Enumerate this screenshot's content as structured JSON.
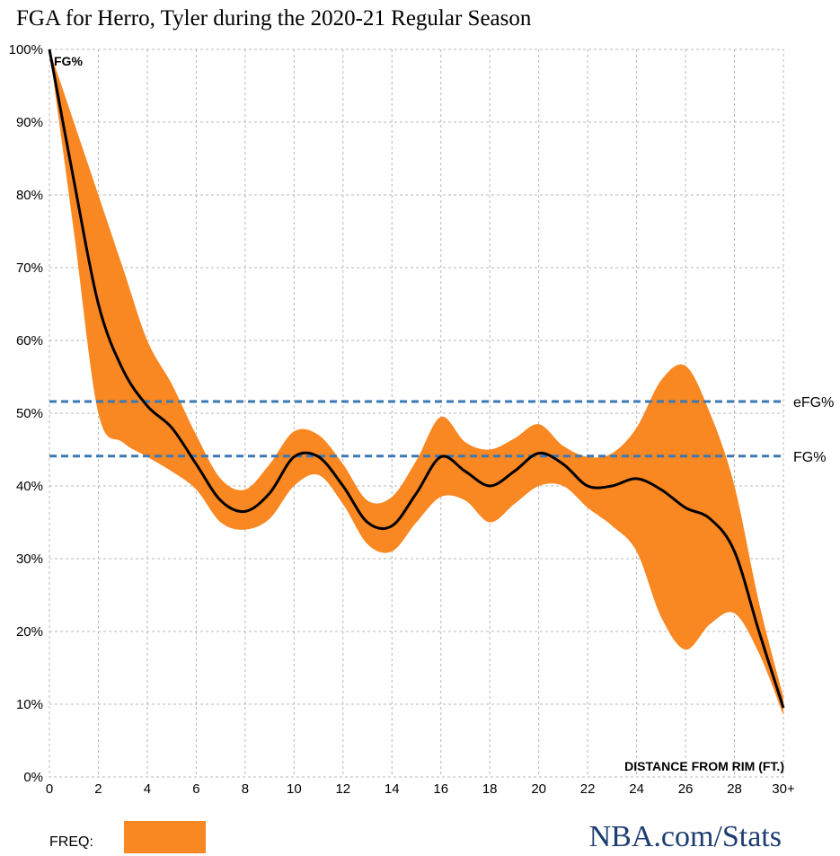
{
  "colors": {
    "band": "#f98722",
    "line": "#000000",
    "reference": "#3b78b4",
    "grid": "#b8b8b8",
    "brand": "#1d3d73"
  },
  "legend": {
    "freq_label": "FREQ:"
  },
  "brand": "NBA.com/Stats",
  "chart_data": {
    "type": "area",
    "title": "FGA for Herro, Tyler during the 2020-21 Regular Season",
    "xlabel": "DISTANCE FROM RIM (FT.)",
    "ylabel": "FG%",
    "xlim": [
      0,
      30
    ],
    "ylim": [
      0,
      100
    ],
    "grid": true,
    "x_ticks": [
      {
        "value": 0,
        "label": "0"
      },
      {
        "value": 2,
        "label": "2"
      },
      {
        "value": 4,
        "label": "4"
      },
      {
        "value": 6,
        "label": "6"
      },
      {
        "value": 8,
        "label": "8"
      },
      {
        "value": 10,
        "label": "10"
      },
      {
        "value": 12,
        "label": "12"
      },
      {
        "value": 14,
        "label": "14"
      },
      {
        "value": 16,
        "label": "16"
      },
      {
        "value": 18,
        "label": "18"
      },
      {
        "value": 20,
        "label": "20"
      },
      {
        "value": 22,
        "label": "22"
      },
      {
        "value": 24,
        "label": "24"
      },
      {
        "value": 26,
        "label": "26"
      },
      {
        "value": 28,
        "label": "28"
      },
      {
        "value": 30,
        "label": "30+"
      }
    ],
    "y_ticks": [
      {
        "value": 0,
        "label": "0%"
      },
      {
        "value": 10,
        "label": "10%"
      },
      {
        "value": 20,
        "label": "20%"
      },
      {
        "value": 30,
        "label": "30%"
      },
      {
        "value": 40,
        "label": "40%"
      },
      {
        "value": 50,
        "label": "50%"
      },
      {
        "value": 60,
        "label": "60%"
      },
      {
        "value": 70,
        "label": "70%"
      },
      {
        "value": 80,
        "label": "80%"
      },
      {
        "value": 90,
        "label": "90%"
      },
      {
        "value": 100,
        "label": "100%"
      }
    ],
    "x": [
      0,
      1,
      2,
      3,
      4,
      5,
      6,
      7,
      8,
      9,
      10,
      11,
      12,
      13,
      14,
      15,
      16,
      17,
      18,
      19,
      20,
      21,
      22,
      23,
      24,
      25,
      26,
      27,
      28,
      29,
      30
    ],
    "fg_pct": [
      100,
      82,
      65,
      56,
      51,
      48,
      43,
      38,
      36.5,
      39,
      44,
      44,
      40,
      35,
      34.5,
      39,
      44,
      42,
      40,
      42,
      44.5,
      43,
      40,
      40,
      41,
      39.5,
      37,
      35.5,
      31,
      20,
      9.5
    ],
    "freq_band": {
      "upper": [
        100,
        90,
        80,
        70,
        60,
        54,
        47,
        41,
        39.5,
        43,
        47.5,
        47,
        43,
        38,
        38.5,
        43.5,
        49.5,
        46,
        45,
        46.5,
        48.5,
        45.5,
        44,
        44.5,
        48,
        54.5,
        56.5,
        50,
        40,
        24,
        11
      ],
      "lower": [
        100,
        75,
        50,
        46,
        44,
        42,
        39.5,
        35,
        34,
        35.5,
        40,
        41.5,
        37.5,
        32,
        31,
        35,
        38.5,
        38,
        35,
        37.5,
        40,
        40,
        37,
        34.5,
        31,
        22,
        17.5,
        21,
        22.5,
        17,
        8.5
      ]
    },
    "reference_lines": [
      {
        "name": "eFG%",
        "value": 51.6
      },
      {
        "name": "FG%",
        "value": 44.1
      }
    ]
  }
}
